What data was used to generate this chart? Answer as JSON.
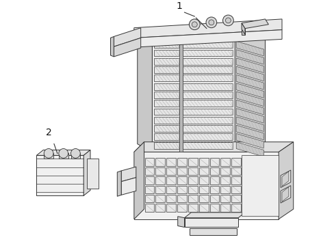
{
  "background_color": "#ffffff",
  "line_color": "#333333",
  "label1": "1",
  "label2": "2",
  "figsize": [
    4.89,
    3.6
  ],
  "dpi": 100
}
